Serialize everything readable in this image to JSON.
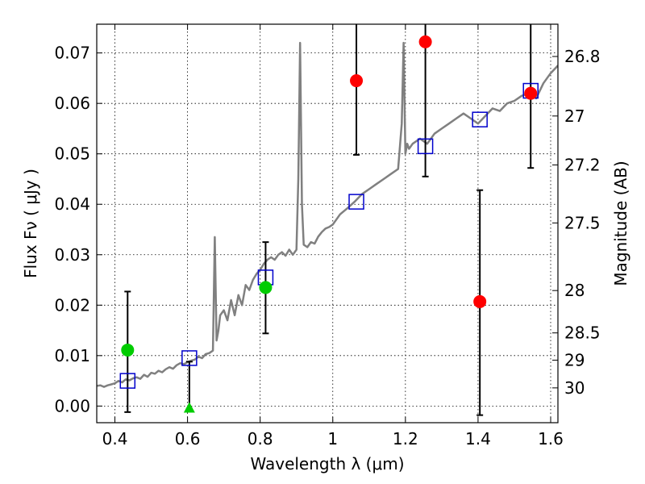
{
  "chart_data": {
    "type": "scatter",
    "xlabel": "Wavelength  λ (μm)",
    "ylabel": "Flux  Fν  ( μJy )",
    "ylabel_right": "Magnitude (AB)",
    "xlim": [
      0.35,
      1.62
    ],
    "ylim": [
      -0.0033,
      0.0757
    ],
    "grid": true,
    "x_ticks": [
      {
        "value": 0.4,
        "label": "0.4"
      },
      {
        "value": 0.6,
        "label": "0.6"
      },
      {
        "value": 0.8,
        "label": "0.8"
      },
      {
        "value": 1.0,
        "label": "1"
      },
      {
        "value": 1.2,
        "label": "1.2"
      },
      {
        "value": 1.4,
        "label": "1.4"
      },
      {
        "value": 1.6,
        "label": "1.6"
      }
    ],
    "y_ticks": [
      {
        "value": 0.0,
        "label": "0.00"
      },
      {
        "value": 0.01,
        "label": "0.01"
      },
      {
        "value": 0.02,
        "label": "0.02"
      },
      {
        "value": 0.03,
        "label": "0.03"
      },
      {
        "value": 0.04,
        "label": "0.04"
      },
      {
        "value": 0.05,
        "label": "0.05"
      },
      {
        "value": 0.06,
        "label": "0.06"
      },
      {
        "value": 0.07,
        "label": "0.07"
      }
    ],
    "right_ticks": [
      {
        "flux": 0.0693,
        "label": "26.8"
      },
      {
        "flux": 0.0575,
        "label": "27"
      },
      {
        "flux": 0.0478,
        "label": "27.2"
      },
      {
        "flux": 0.0363,
        "label": "27.5"
      },
      {
        "flux": 0.0229,
        "label": "28"
      },
      {
        "flux": 0.0145,
        "label": "28.5"
      },
      {
        "flux": 0.0091,
        "label": "29"
      },
      {
        "flux": 0.0036,
        "label": "30"
      }
    ],
    "series": [
      {
        "kind": "sed-model-line",
        "color": "#808080",
        "x": [
          0.35,
          0.36,
          0.37,
          0.38,
          0.39,
          0.4,
          0.41,
          0.42,
          0.43,
          0.44,
          0.45,
          0.46,
          0.47,
          0.48,
          0.49,
          0.5,
          0.51,
          0.52,
          0.53,
          0.54,
          0.55,
          0.56,
          0.57,
          0.58,
          0.59,
          0.6,
          0.61,
          0.62,
          0.63,
          0.64,
          0.65,
          0.66,
          0.67,
          0.675,
          0.68,
          0.685,
          0.69,
          0.7,
          0.71,
          0.72,
          0.73,
          0.74,
          0.75,
          0.76,
          0.77,
          0.78,
          0.79,
          0.8,
          0.81,
          0.82,
          0.83,
          0.84,
          0.85,
          0.86,
          0.87,
          0.88,
          0.89,
          0.9,
          0.905,
          0.91,
          0.915,
          0.92,
          0.93,
          0.94,
          0.95,
          0.96,
          0.97,
          0.98,
          0.99,
          1.0,
          1.02,
          1.04,
          1.06,
          1.08,
          1.1,
          1.12,
          1.14,
          1.16,
          1.18,
          1.19,
          1.195,
          1.2,
          1.205,
          1.21,
          1.22,
          1.24,
          1.26,
          1.28,
          1.3,
          1.32,
          1.34,
          1.36,
          1.38,
          1.4,
          1.42,
          1.44,
          1.46,
          1.48,
          1.5,
          1.52,
          1.54,
          1.56,
          1.58,
          1.6,
          1.62
        ],
        "y": [
          0.004,
          0.0041,
          0.0038,
          0.0041,
          0.0043,
          0.0045,
          0.005,
          0.0047,
          0.0053,
          0.0051,
          0.0055,
          0.0057,
          0.0054,
          0.0062,
          0.0058,
          0.0066,
          0.0064,
          0.007,
          0.0067,
          0.0073,
          0.0077,
          0.0074,
          0.0081,
          0.0085,
          0.0083,
          0.0087,
          0.009,
          0.0092,
          0.0098,
          0.0095,
          0.0103,
          0.0105,
          0.011,
          0.0335,
          0.013,
          0.015,
          0.018,
          0.019,
          0.017,
          0.021,
          0.018,
          0.022,
          0.02,
          0.024,
          0.023,
          0.025,
          0.0262,
          0.027,
          0.0282,
          0.029,
          0.0295,
          0.029,
          0.03,
          0.0305,
          0.0298,
          0.031,
          0.03,
          0.031,
          0.045,
          0.072,
          0.04,
          0.032,
          0.0315,
          0.0325,
          0.0322,
          0.0336,
          0.0345,
          0.0352,
          0.0355,
          0.036,
          0.038,
          0.0392,
          0.0405,
          0.042,
          0.043,
          0.044,
          0.045,
          0.046,
          0.047,
          0.056,
          0.072,
          0.05,
          0.052,
          0.051,
          0.052,
          0.053,
          0.052,
          0.054,
          0.055,
          0.056,
          0.057,
          0.058,
          0.057,
          0.056,
          0.0575,
          0.059,
          0.0585,
          0.06,
          0.0605,
          0.0615,
          0.062,
          0.061,
          0.064,
          0.066,
          0.0675
        ]
      },
      {
        "kind": "model-squares",
        "color": "#0000cc",
        "x": [
          0.435,
          0.605,
          0.815,
          1.065,
          1.255,
          1.405,
          1.545
        ],
        "y": [
          0.005,
          0.0095,
          0.0255,
          0.0405,
          0.0515,
          0.0568,
          0.0625
        ]
      },
      {
        "kind": "observed-red",
        "color": "#ff0000",
        "x": [
          1.065,
          1.255,
          1.405,
          1.545
        ],
        "y": [
          0.0645,
          0.0722,
          0.0207,
          0.062
        ],
        "yerr_lo": [
          0.0498,
          0.0455,
          -0.0018,
          0.0472
        ],
        "yerr_hi": [
          0.079,
          0.079,
          0.0428,
          0.079
        ]
      },
      {
        "kind": "observed-green",
        "color": "#00cc00",
        "x": [
          0.435,
          0.815
        ],
        "y": [
          0.0111,
          0.0235
        ],
        "yerr_lo": [
          -0.0012,
          0.0144
        ],
        "yerr_hi": [
          0.0227,
          0.0325
        ]
      },
      {
        "kind": "upper-limit-triangle",
        "color": "#00cc00",
        "x": [
          0.605
        ],
        "y": [
          -0.0005
        ],
        "yerr_lo": [
          -0.0005
        ],
        "yerr_hi": [
          0.0088
        ]
      }
    ]
  }
}
